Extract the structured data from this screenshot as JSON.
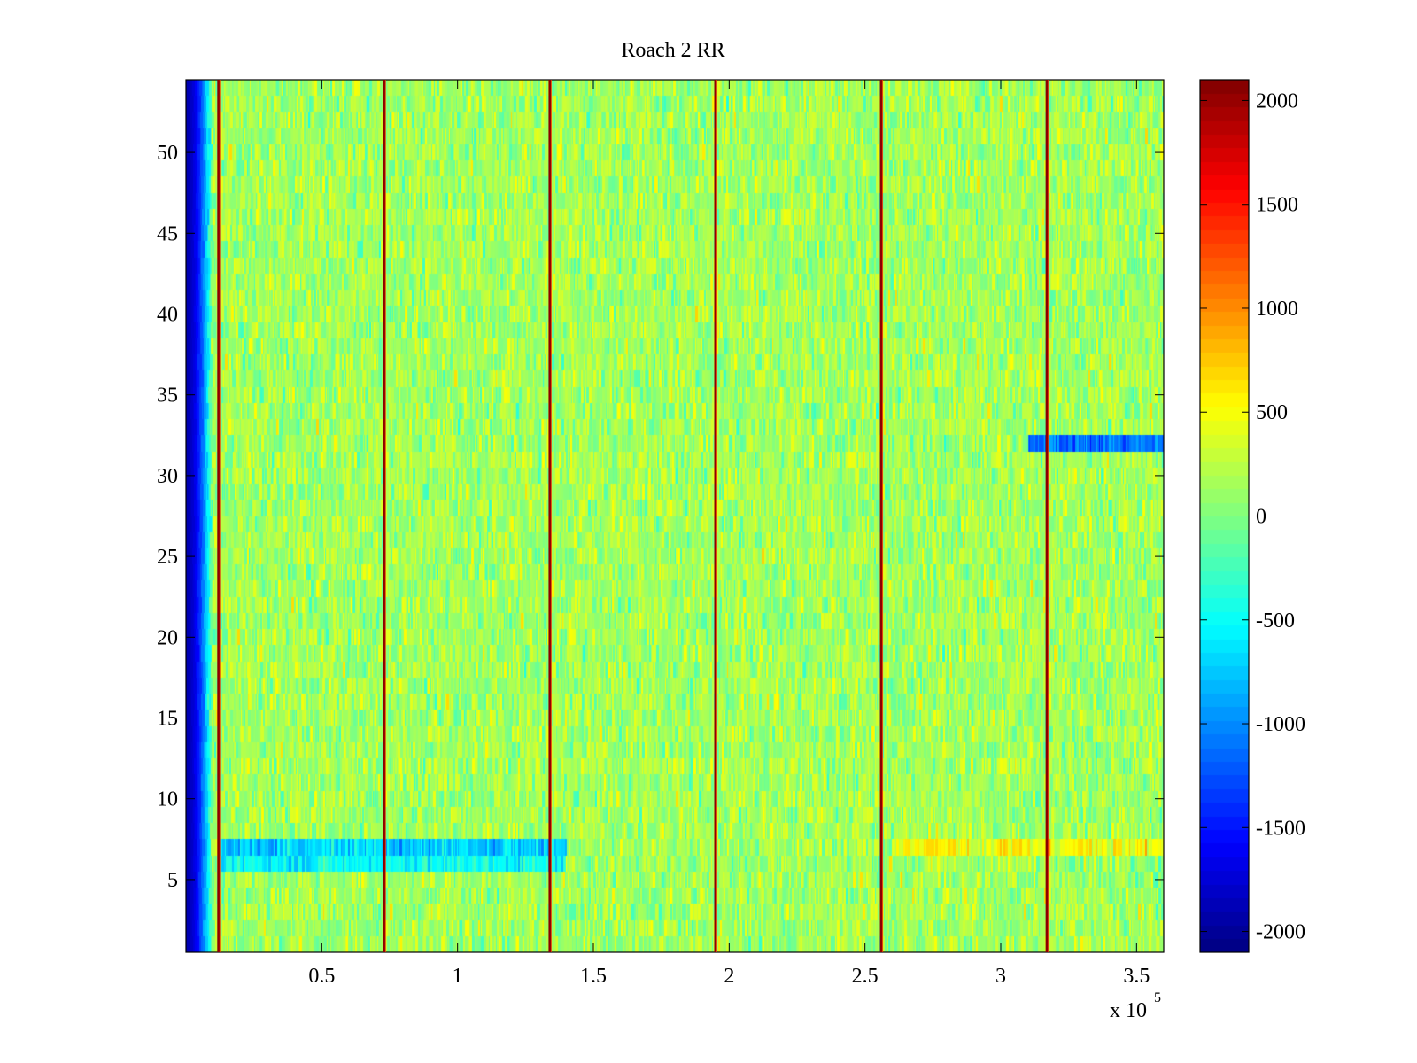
{
  "chart_data": {
    "type": "heatmap",
    "title": "Roach 2 RR",
    "xlabel": "",
    "ylabel": "",
    "x_multiplier_text": "x 10",
    "x_multiplier_exponent": "5",
    "xlim": [
      0,
      3.6
    ],
    "ylim": [
      0.5,
      54.5
    ],
    "x_ticks": [
      0.5,
      1,
      1.5,
      2,
      2.5,
      3,
      3.5
    ],
    "x_tick_labels": [
      "0.5",
      "1",
      "1.5",
      "2",
      "2.5",
      "3",
      "3.5"
    ],
    "y_ticks": [
      5,
      10,
      15,
      20,
      25,
      30,
      35,
      40,
      45,
      50
    ],
    "y_tick_labels": [
      "5",
      "10",
      "15",
      "20",
      "25",
      "30",
      "35",
      "40",
      "45",
      "50"
    ],
    "rows": 54,
    "colorbar": {
      "colormap": "jet",
      "clim": [
        -2100,
        2100
      ],
      "ticks": [
        -2000,
        -1500,
        -1000,
        -500,
        0,
        500,
        1000,
        1500,
        2000
      ],
      "tick_labels": [
        "-2000",
        "-1500",
        "-1000",
        "-500",
        "0",
        "500",
        "1000",
        "1500",
        "2000"
      ]
    },
    "background_level": 150,
    "left_edge": {
      "x_range": [
        0,
        0.1
      ],
      "value": -1900
    },
    "vertical_spike_lines_x": [
      0.12,
      0.73,
      1.34,
      1.95,
      2.56,
      3.17
    ],
    "horizontal_features": [
      {
        "row": 32,
        "x_range": [
          3.1,
          3.6
        ],
        "value": -1100
      },
      {
        "row": 7,
        "x_range": [
          2.6,
          3.6
        ],
        "value": 500
      },
      {
        "row": 7,
        "x_range": [
          0.12,
          1.4
        ],
        "value": -700
      },
      {
        "row": 6,
        "x_range": [
          0.12,
          1.4
        ],
        "value": -500
      }
    ]
  }
}
